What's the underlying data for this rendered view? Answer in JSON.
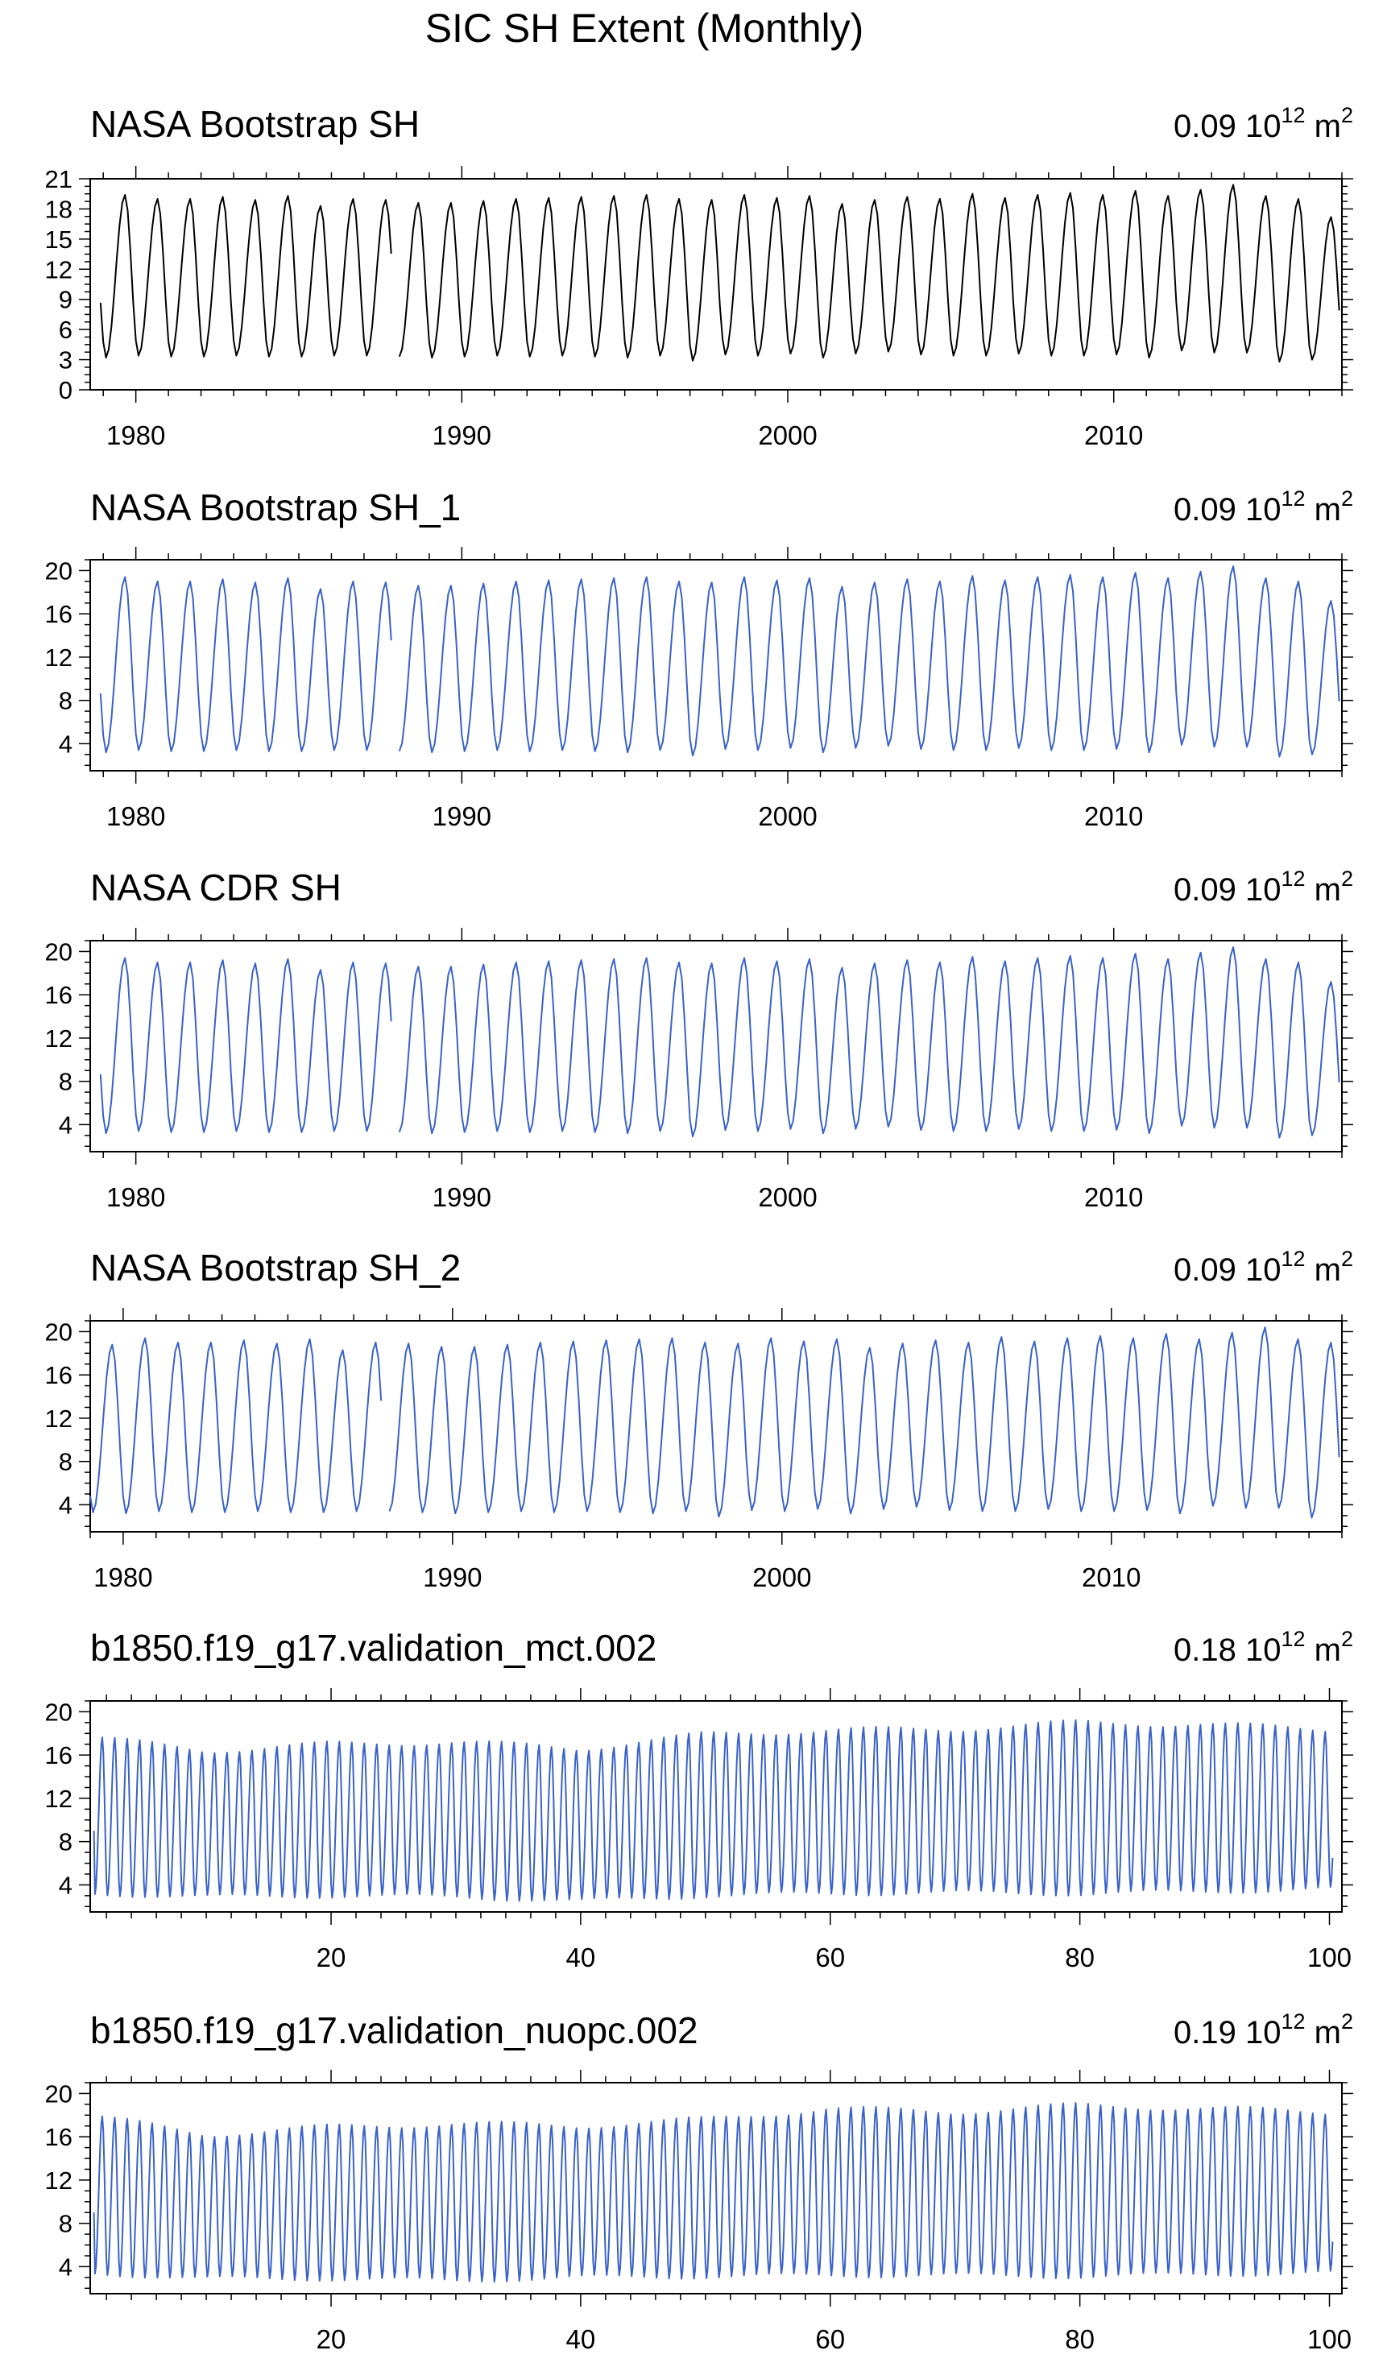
{
  "figure": {
    "title": "SIC SH Extent (Monthly)"
  },
  "chart_data": [
    {
      "type": "line",
      "title": "NASA Bootstrap SH",
      "stat": "0.09",
      "unit_base": "10",
      "unit_exp": "12",
      "unit_tail": "m",
      "unit_tail_exp": "2",
      "xlabel": "",
      "ylabel": "",
      "xlim": [
        1978.6,
        2017.0
      ],
      "ylim": [
        0,
        21
      ],
      "x_ticks": [
        1980,
        1990,
        2000,
        2010
      ],
      "y_ticks": [
        0,
        3,
        6,
        9,
        12,
        15,
        18,
        21
      ],
      "color": "#000000",
      "series": [
        {
          "x_start": 1978.92,
          "x_step_months": 1,
          "gap": [
            1987.9,
            1988.05
          ],
          "cycle": {
            "min": 3.2,
            "max": 18.9,
            "min_month": "Feb",
            "max_month": "Sep"
          },
          "annual_max": [
            18.8,
            19.4,
            19.0,
            19.0,
            19.2,
            18.9,
            19.3,
            18.3,
            19.0,
            18.9,
            18.6,
            18.6,
            18.8,
            19.0,
            19.1,
            19.2,
            19.3,
            19.4,
            19.0,
            18.9,
            19.4,
            19.1,
            19.3,
            18.5,
            18.9,
            19.2,
            19.0,
            19.5,
            19.1,
            19.4,
            19.6,
            19.4,
            19.8,
            19.3,
            19.9,
            20.4,
            19.3,
            19.0,
            17.2
          ],
          "annual_min": [
            3.3,
            3.2,
            3.4,
            3.3,
            3.3,
            3.4,
            3.3,
            3.3,
            3.4,
            3.4,
            3.3,
            3.2,
            3.3,
            3.4,
            3.3,
            3.4,
            3.3,
            3.2,
            3.4,
            2.9,
            3.5,
            3.4,
            3.6,
            3.2,
            3.6,
            3.8,
            3.5,
            3.4,
            3.4,
            3.6,
            3.4,
            3.4,
            3.5,
            3.2,
            3.9,
            3.7,
            3.7,
            2.8,
            3.0
          ]
        }
      ]
    },
    {
      "type": "line",
      "title": "NASA Bootstrap SH_1",
      "stat": "0.09",
      "unit_base": "10",
      "unit_exp": "12",
      "unit_tail": "m",
      "unit_tail_exp": "2",
      "xlabel": "",
      "ylabel": "",
      "xlim": [
        1978.6,
        2017.0
      ],
      "ylim": [
        1.5,
        21
      ],
      "x_ticks": [
        1980,
        1990,
        2000,
        2010
      ],
      "y_ticks": [
        4,
        8,
        12,
        16,
        20
      ],
      "color": "#3a62c9",
      "series": [
        {
          "x_start": 1978.92,
          "x_step_months": 1,
          "gap": [
            1987.9,
            1988.05
          ],
          "cycle": {
            "min": 3.2,
            "max": 18.9,
            "min_month": "Feb",
            "max_month": "Sep"
          },
          "annual_max": [
            18.8,
            19.4,
            19.0,
            19.0,
            19.2,
            18.9,
            19.3,
            18.3,
            19.0,
            18.9,
            18.6,
            18.6,
            18.8,
            19.0,
            19.1,
            19.2,
            19.3,
            19.4,
            19.0,
            18.9,
            19.4,
            19.1,
            19.3,
            18.5,
            18.9,
            19.2,
            19.0,
            19.5,
            19.1,
            19.4,
            19.6,
            19.4,
            19.8,
            19.3,
            19.9,
            20.4,
            19.3,
            19.0,
            17.2
          ],
          "annual_min": [
            3.3,
            3.2,
            3.4,
            3.3,
            3.3,
            3.4,
            3.3,
            3.3,
            3.4,
            3.4,
            3.3,
            3.2,
            3.3,
            3.4,
            3.3,
            3.4,
            3.3,
            3.2,
            3.4,
            2.9,
            3.5,
            3.4,
            3.6,
            3.2,
            3.6,
            3.8,
            3.5,
            3.4,
            3.4,
            3.6,
            3.4,
            3.4,
            3.5,
            3.2,
            3.9,
            3.7,
            3.7,
            2.8,
            3.0
          ]
        }
      ]
    },
    {
      "type": "line",
      "title": "NASA CDR SH",
      "stat": "0.09",
      "unit_base": "10",
      "unit_exp": "12",
      "unit_tail": "m",
      "unit_tail_exp": "2",
      "xlabel": "",
      "ylabel": "",
      "xlim": [
        1978.6,
        2017.0
      ],
      "ylim": [
        1.5,
        21
      ],
      "x_ticks": [
        1980,
        1990,
        2000,
        2010
      ],
      "y_ticks": [
        4,
        8,
        12,
        16,
        20
      ],
      "color": "#3a62c9",
      "series": [
        {
          "x_start": 1978.92,
          "x_step_months": 1,
          "gap": [
            1987.9,
            1988.05
          ],
          "cycle": {
            "min": 3.2,
            "max": 18.9,
            "min_month": "Feb",
            "max_month": "Sep"
          },
          "annual_max": [
            18.8,
            19.4,
            19.0,
            19.0,
            19.2,
            18.9,
            19.3,
            18.3,
            19.0,
            18.9,
            18.6,
            18.6,
            18.8,
            19.0,
            19.1,
            19.2,
            19.3,
            19.4,
            19.0,
            18.9,
            19.4,
            19.1,
            19.3,
            18.5,
            18.9,
            19.2,
            19.0,
            19.5,
            19.1,
            19.4,
            19.6,
            19.4,
            19.8,
            19.3,
            19.9,
            20.4,
            19.3,
            19.0,
            17.2
          ],
          "annual_min": [
            3.3,
            3.2,
            3.4,
            3.3,
            3.3,
            3.4,
            3.3,
            3.3,
            3.4,
            3.4,
            3.3,
            3.2,
            3.3,
            3.4,
            3.3,
            3.4,
            3.3,
            3.2,
            3.4,
            2.9,
            3.5,
            3.4,
            3.6,
            3.2,
            3.6,
            3.8,
            3.5,
            3.4,
            3.4,
            3.6,
            3.4,
            3.4,
            3.5,
            3.2,
            3.9,
            3.7,
            3.7,
            2.8,
            3.0
          ]
        }
      ]
    },
    {
      "type": "line",
      "title": "NASA Bootstrap SH_2",
      "stat": "0.09",
      "unit_base": "10",
      "unit_exp": "12",
      "unit_tail": "m",
      "unit_tail_exp": "2",
      "xlabel": "",
      "ylabel": "",
      "xlim": [
        1979.0,
        2017.0
      ],
      "ylim": [
        1.5,
        21
      ],
      "x_ticks": [
        1980,
        1990,
        2000,
        2010
      ],
      "y_ticks": [
        4,
        8,
        12,
        16,
        20
      ],
      "color": "#3a62c9",
      "series": [
        {
          "x_start": 1979.0,
          "x_step_months": 1,
          "gap": [
            1987.9,
            1988.05
          ],
          "cycle": {
            "min": 3.2,
            "max": 18.9,
            "min_month": "Feb",
            "max_month": "Sep"
          },
          "annual_max": [
            18.8,
            19.4,
            19.0,
            19.0,
            19.2,
            18.9,
            19.3,
            18.3,
            19.0,
            18.9,
            18.6,
            18.6,
            18.8,
            19.0,
            19.1,
            19.2,
            19.3,
            19.4,
            19.0,
            18.9,
            19.4,
            19.1,
            19.3,
            18.5,
            18.9,
            19.2,
            19.0,
            19.5,
            19.1,
            19.4,
            19.6,
            19.4,
            19.8,
            19.3,
            19.9,
            20.4,
            19.3,
            19.0,
            17.2
          ],
          "annual_min": [
            3.3,
            3.2,
            3.4,
            3.3,
            3.3,
            3.4,
            3.3,
            3.3,
            3.4,
            3.4,
            3.3,
            3.2,
            3.3,
            3.4,
            3.3,
            3.4,
            3.3,
            3.2,
            3.4,
            2.9,
            3.5,
            3.4,
            3.6,
            3.2,
            3.6,
            3.8,
            3.5,
            3.4,
            3.4,
            3.6,
            3.4,
            3.4,
            3.5,
            3.2,
            3.9,
            3.7,
            3.7,
            2.8,
            3.0
          ]
        }
      ]
    },
    {
      "type": "line",
      "title": "b1850.f19_g17.validation_mct.002",
      "stat": "0.18",
      "unit_base": "10",
      "unit_exp": "12",
      "unit_tail": "m",
      "unit_tail_exp": "2",
      "xlabel": "",
      "ylabel": "",
      "xlim": [
        0.7,
        101.0
      ],
      "ylim": [
        1.5,
        21
      ],
      "x_ticks": [
        20,
        40,
        60,
        80,
        100
      ],
      "y_ticks": [
        4,
        8,
        12,
        16,
        20
      ],
      "color": "#3a62c9",
      "series": [
        {
          "x_start": 1.0,
          "x_step_months": 1,
          "cycle": {
            "min": 3.0,
            "max": 17.5,
            "min_month": "Feb",
            "max_month": "Sep"
          },
          "first_value": 9.0,
          "max_trend": [
            [
              1,
              17.6
            ],
            [
              10,
              16.4
            ],
            [
              20,
              17.0
            ],
            [
              30,
              17.2
            ],
            [
              40,
              16.6
            ],
            [
              50,
              17.9
            ],
            [
              60,
              18.3
            ],
            [
              70,
              18.4
            ],
            [
              80,
              19.0
            ],
            [
              90,
              18.8
            ],
            [
              100,
              18.4
            ]
          ],
          "min_trend": [
            [
              1,
              3.2
            ],
            [
              10,
              2.9
            ],
            [
              20,
              3.0
            ],
            [
              30,
              2.9
            ],
            [
              40,
              2.5
            ],
            [
              50,
              3.0
            ],
            [
              60,
              3.2
            ],
            [
              70,
              3.3
            ],
            [
              80,
              3.2
            ],
            [
              90,
              3.4
            ],
            [
              100,
              3.6
            ]
          ]
        }
      ]
    },
    {
      "type": "line",
      "title": "b1850.f19_g17.validation_nuopc.002",
      "stat": "0.19",
      "unit_base": "10",
      "unit_exp": "12",
      "unit_tail": "m",
      "unit_tail_exp": "2",
      "xlabel": "",
      "ylabel": "",
      "xlim": [
        0.7,
        101.0
      ],
      "ylim": [
        1.5,
        21
      ],
      "x_ticks": [
        20,
        40,
        60,
        80,
        100
      ],
      "y_ticks": [
        4,
        8,
        12,
        16,
        20
      ],
      "color": "#3a62c9",
      "series": [
        {
          "x_start": 1.0,
          "x_step_months": 1,
          "cycle": {
            "min": 3.0,
            "max": 17.5,
            "min_month": "Feb",
            "max_month": "Sep"
          },
          "first_value": 9.0,
          "max_trend": [
            [
              1,
              17.9
            ],
            [
              10,
              16.2
            ],
            [
              20,
              16.9
            ],
            [
              30,
              17.2
            ],
            [
              40,
              17.0
            ],
            [
              50,
              17.6
            ],
            [
              60,
              18.6
            ],
            [
              70,
              18.3
            ],
            [
              80,
              18.9
            ],
            [
              90,
              18.6
            ],
            [
              100,
              18.3
            ]
          ],
          "min_trend": [
            [
              1,
              3.4
            ],
            [
              10,
              2.9
            ],
            [
              20,
              2.9
            ],
            [
              30,
              2.7
            ],
            [
              40,
              3.0
            ],
            [
              50,
              3.1
            ],
            [
              60,
              3.2
            ],
            [
              70,
              3.2
            ],
            [
              80,
              3.1
            ],
            [
              90,
              3.3
            ],
            [
              100,
              3.4
            ]
          ]
        }
      ]
    }
  ]
}
